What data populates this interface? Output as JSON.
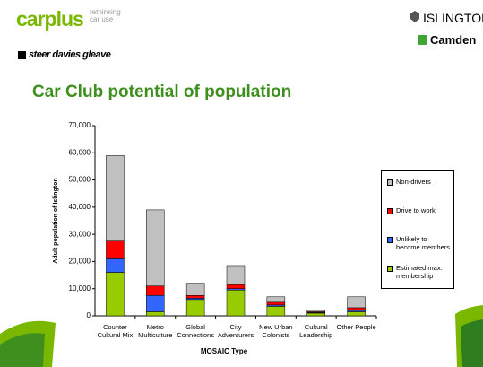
{
  "header": {
    "brand": "carplus",
    "tagline": "rethinking car use",
    "partner": "steer davies gleave",
    "council1": "ISLINGTON",
    "council2": "Camden"
  },
  "chart_data": {
    "type": "stacked_bar",
    "title": "Car Club potential of population",
    "categories": [
      "Counter Cultural Mix",
      "Metro Multiculture",
      "Global Connections",
      "City Adventurers",
      "New Urban Colonists",
      "Cultural Leadership",
      "Other People"
    ],
    "series": [
      {
        "name": "Estimated max. membership",
        "color": "#99cc00",
        "values": [
          16000,
          1500,
          6000,
          9500,
          3500,
          1000,
          1500
        ]
      },
      {
        "name": "Unlikely to become members",
        "color": "#3366ff",
        "values": [
          5000,
          6000,
          500,
          500,
          500,
          200,
          500
        ]
      },
      {
        "name": "Drive to work",
        "color": "#ff0000",
        "values": [
          6500,
          3500,
          1000,
          1500,
          1000,
          300,
          1000
        ]
      },
      {
        "name": "Non-drivers",
        "color": "#c0c0c0",
        "values": [
          31500,
          28000,
          4500,
          7000,
          2000,
          500,
          4000
        ]
      }
    ],
    "x_label": "MOSAIC Type",
    "y_label": "Adult population of Islington",
    "ylim": [
      0,
      70000
    ],
    "yticks": [
      0,
      {
        "value": 10000,
        "label": "10,000"
      },
      {
        "value": 20000,
        "label": "20,000"
      },
      {
        "value": 30000,
        "label": "30,000"
      },
      {
        "value": 40000,
        "label": "40,000"
      },
      {
        "value": 50000,
        "label": "50,000"
      },
      {
        "value": 60000,
        "label": "60,000"
      },
      {
        "value": 70000,
        "label": "70,000"
      }
    ],
    "legend": "right"
  }
}
